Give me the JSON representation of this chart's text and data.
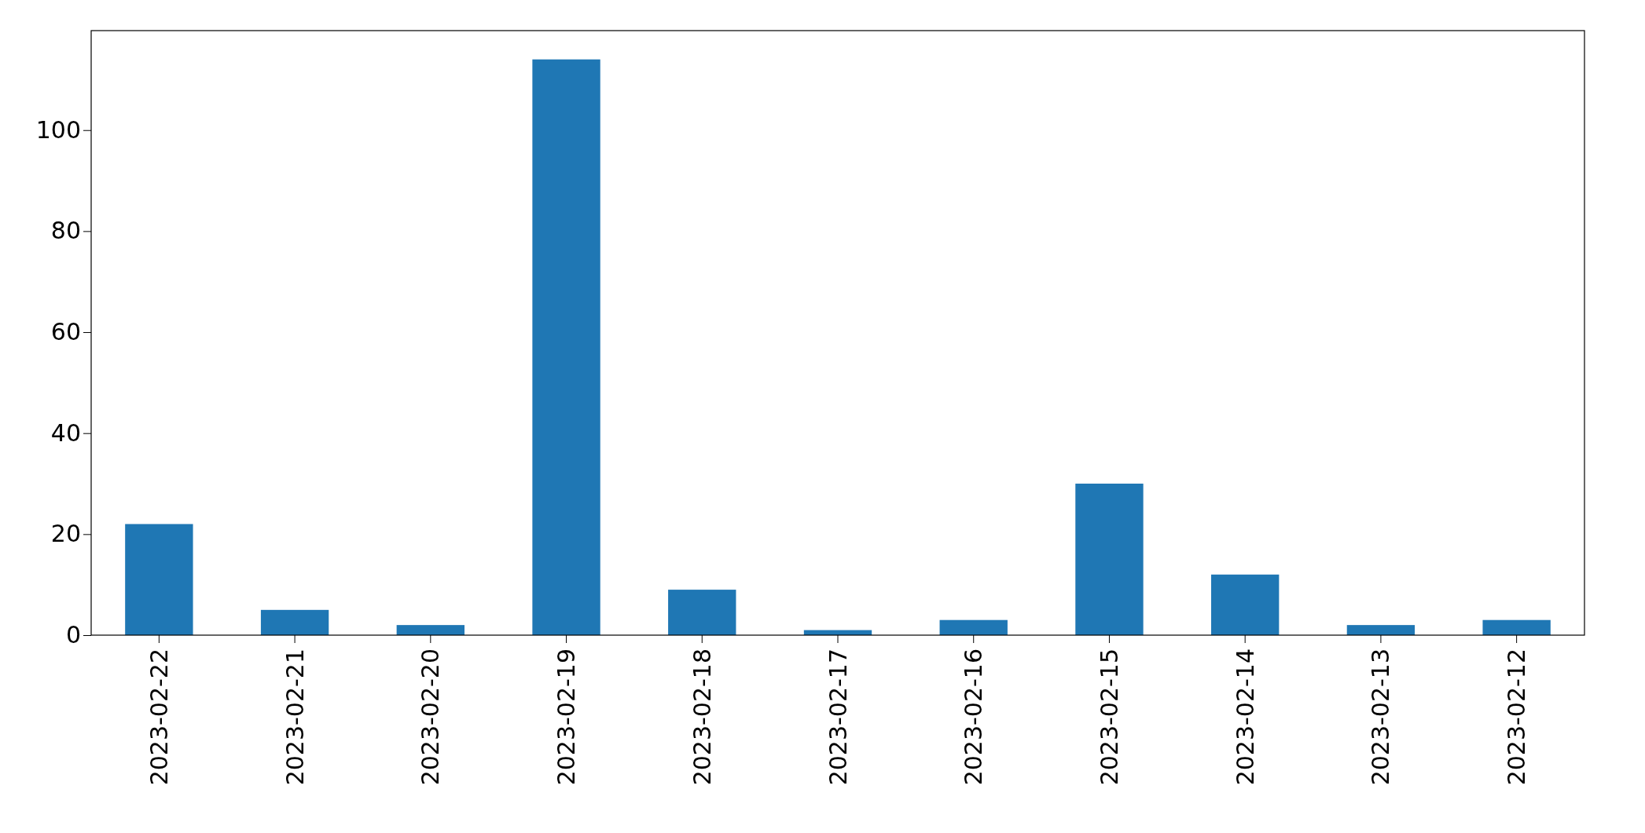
{
  "chart_data": {
    "type": "bar",
    "categories": [
      "2023-02-22",
      "2023-02-21",
      "2023-02-20",
      "2023-02-19",
      "2023-02-18",
      "2023-02-17",
      "2023-02-16",
      "2023-02-15",
      "2023-02-14",
      "2023-02-13",
      "2023-02-12"
    ],
    "values": [
      22,
      5,
      2,
      114,
      9,
      1,
      3,
      30,
      12,
      2,
      3
    ],
    "color": "#1f77b4",
    "ylim": [
      0,
      119.7
    ],
    "yticks": [
      0,
      20,
      40,
      60,
      80,
      100
    ],
    "grid": false
  }
}
